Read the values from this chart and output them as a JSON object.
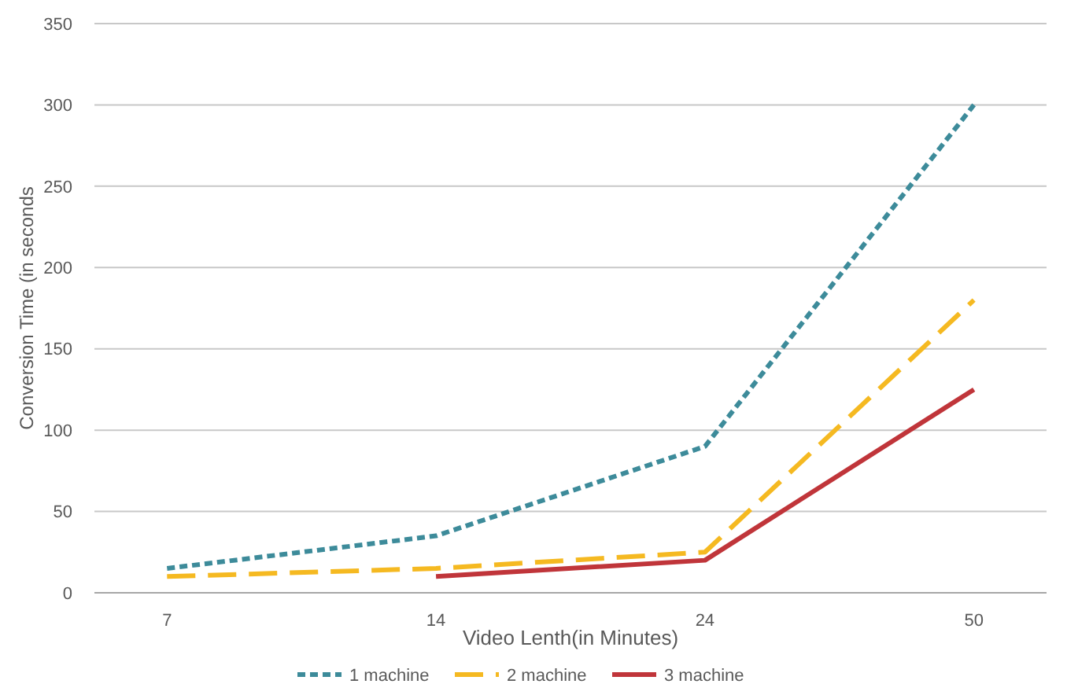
{
  "chart_data": {
    "type": "line",
    "xlabel": "Video Lenth(in Minutes)",
    "ylabel": "Conversion Time (in seconds",
    "categories": [
      "7",
      "14",
      "24",
      "50"
    ],
    "ylim": [
      0,
      350
    ],
    "yticks": [
      0,
      50,
      100,
      150,
      200,
      250,
      300,
      350
    ],
    "grid": "y",
    "legend": "bottom",
    "marker": "none",
    "series": [
      {
        "name": "1 machine",
        "color": "#3d8b9a",
        "line_style": "dotted",
        "values": [
          15,
          35,
          90,
          300
        ]
      },
      {
        "name": "2 machine",
        "color": "#f5b921",
        "line_style": "dashed",
        "values": [
          10,
          15,
          25,
          180
        ]
      },
      {
        "name": "3 machine",
        "color": "#c0353a",
        "line_style": "solid",
        "values": [
          null,
          10,
          20,
          125
        ]
      }
    ]
  }
}
